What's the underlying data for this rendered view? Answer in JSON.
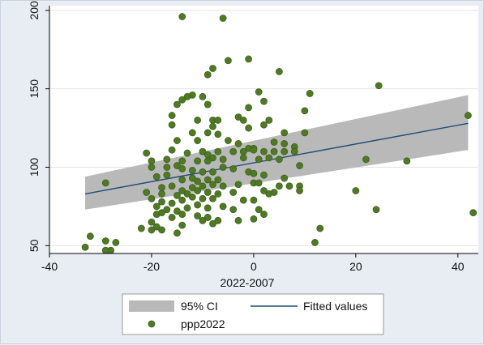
{
  "chart_data": {
    "type": "scatter",
    "xlabel": "2022-2007",
    "ylabel": "",
    "xlim": [
      -40,
      44
    ],
    "ylim": [
      45,
      203
    ],
    "xticks": [
      -40,
      -20,
      0,
      20,
      40
    ],
    "yticks": [
      50,
      100,
      150,
      200
    ],
    "grid": "horizontal",
    "legend_position": "bottom",
    "colors": {
      "points": "#4f7a23",
      "points_edge": "#3e611b",
      "fit_line": "#1f4e79",
      "ci_band": "#b9b9b9",
      "plot_background": "#ffffff",
      "outer_background": "#e7edf3"
    },
    "legend": [
      {
        "label": "95% CI",
        "kind": "band"
      },
      {
        "label": "Fitted values",
        "kind": "line"
      },
      {
        "label": "ppp2022",
        "kind": "marker"
      }
    ],
    "fit": {
      "x": [
        -33,
        42
      ],
      "y": [
        83,
        128
      ],
      "ci_lower": [
        73,
        111
      ],
      "ci_upper": [
        94,
        146
      ]
    },
    "series": [
      {
        "name": "ppp2022",
        "points": [
          [
            -14,
            196
          ],
          [
            -6,
            195
          ],
          [
            -1,
            169
          ],
          [
            -5,
            168
          ],
          [
            5,
            161
          ],
          [
            -9,
            159
          ],
          [
            -8,
            163
          ],
          [
            24.5,
            152
          ],
          [
            11,
            147
          ],
          [
            1,
            148
          ],
          [
            -12,
            146
          ],
          [
            -13,
            145
          ],
          [
            -14,
            143
          ],
          [
            -15,
            140
          ],
          [
            -9,
            140
          ],
          [
            -10,
            145
          ],
          [
            2,
            142
          ],
          [
            -1,
            138
          ],
          [
            10,
            136
          ],
          [
            -16,
            133
          ],
          [
            -3,
            132
          ],
          [
            -11,
            130
          ],
          [
            -8,
            130
          ],
          [
            -7,
            130
          ],
          [
            -2,
            130
          ],
          [
            3,
            130
          ],
          [
            -16,
            127
          ],
          [
            -8,
            126
          ],
          [
            -1,
            125
          ],
          [
            2,
            127
          ],
          [
            -12,
            122
          ],
          [
            -9,
            122
          ],
          [
            -7,
            121
          ],
          [
            6,
            122
          ],
          [
            10,
            122
          ],
          [
            -15,
            117
          ],
          [
            -11,
            117
          ],
          [
            -5,
            117
          ],
          [
            -3,
            115
          ],
          [
            -1,
            112
          ],
          [
            0,
            112
          ],
          [
            4,
            116
          ],
          [
            6,
            115
          ],
          [
            8,
            113
          ],
          [
            -21,
            109
          ],
          [
            -16,
            111
          ],
          [
            -13,
            109
          ],
          [
            -10,
            110
          ],
          [
            -9,
            108
          ],
          [
            -7,
            110
          ],
          [
            -4,
            110
          ],
          [
            -2,
            110
          ],
          [
            0,
            111
          ],
          [
            2,
            110
          ],
          [
            4,
            110
          ],
          [
            6,
            110
          ],
          [
            8,
            110
          ],
          [
            -20,
            104
          ],
          [
            -17,
            105
          ],
          [
            -14,
            104
          ],
          [
            -11,
            104
          ],
          [
            -9,
            104
          ],
          [
            -8,
            106
          ],
          [
            -6,
            105
          ],
          [
            -2,
            106
          ],
          [
            1,
            105
          ],
          [
            3,
            106
          ],
          [
            5,
            105
          ],
          [
            -20,
            100
          ],
          [
            -17,
            100
          ],
          [
            -15,
            101
          ],
          [
            -14,
            99
          ],
          [
            -12,
            98
          ],
          [
            -10,
            97
          ],
          [
            -8,
            97
          ],
          [
            -6,
            100
          ],
          [
            -4,
            99
          ],
          [
            -1,
            97
          ],
          [
            0,
            96
          ],
          [
            2,
            95
          ],
          [
            -19,
            94
          ],
          [
            -17,
            95
          ],
          [
            -14,
            92
          ],
          [
            -12,
            93
          ],
          [
            -11,
            91
          ],
          [
            -9,
            92
          ],
          [
            -7,
            92
          ],
          [
            0,
            90
          ],
          [
            -18,
            87
          ],
          [
            -16,
            88
          ],
          [
            -14,
            85
          ],
          [
            -12,
            87
          ],
          [
            -10,
            88
          ],
          [
            -8,
            89
          ],
          [
            -6,
            88
          ],
          [
            -3,
            89
          ],
          [
            1,
            90
          ],
          [
            5,
            88
          ],
          [
            7,
            88
          ],
          [
            9,
            88
          ],
          [
            -21,
            84
          ],
          [
            -18,
            83
          ],
          [
            -15,
            82
          ],
          [
            -13,
            83
          ],
          [
            -11,
            85
          ],
          [
            -9,
            84
          ],
          [
            -7,
            83
          ],
          [
            -4,
            84
          ],
          [
            2,
            85
          ],
          [
            3,
            83
          ],
          [
            4,
            84
          ],
          [
            -20,
            80
          ],
          [
            -18,
            78
          ],
          [
            -16,
            77
          ],
          [
            -14,
            79
          ],
          [
            -12,
            81
          ],
          [
            -10,
            80
          ],
          [
            -8,
            80
          ],
          [
            -2,
            79
          ],
          [
            0,
            79
          ],
          [
            -19,
            75
          ],
          [
            -17,
            73
          ],
          [
            -15,
            72
          ],
          [
            -13,
            74
          ],
          [
            -11,
            76
          ],
          [
            -9,
            74
          ],
          [
            -6,
            75
          ],
          [
            -4,
            73
          ],
          [
            1,
            73
          ],
          [
            -19,
            70
          ],
          [
            -18,
            71
          ],
          [
            -16,
            68
          ],
          [
            -14,
            70
          ],
          [
            -11,
            69
          ],
          [
            -9,
            68
          ],
          [
            -7,
            66
          ],
          [
            -3,
            66
          ],
          [
            0,
            67
          ],
          [
            2,
            70
          ],
          [
            -20,
            65
          ],
          [
            -19,
            62
          ],
          [
            -14,
            63
          ],
          [
            -10,
            66
          ],
          [
            -8,
            64
          ],
          [
            -20,
            60
          ],
          [
            -22,
            61
          ],
          [
            -18,
            60
          ],
          [
            -15,
            58
          ],
          [
            13,
            61
          ],
          [
            12,
            52
          ],
          [
            -33,
            49
          ],
          [
            -32,
            56
          ],
          [
            -29,
            53
          ],
          [
            -28,
            47
          ],
          [
            -29,
            47
          ],
          [
            -27,
            52
          ],
          [
            -29,
            90
          ],
          [
            20,
            85
          ],
          [
            22,
            105
          ],
          [
            24,
            73
          ],
          [
            30,
            104
          ],
          [
            42,
            133
          ],
          [
            43,
            71
          ],
          [
            9,
            85
          ],
          [
            6,
            93
          ],
          [
            9,
            101
          ]
        ]
      }
    ]
  }
}
